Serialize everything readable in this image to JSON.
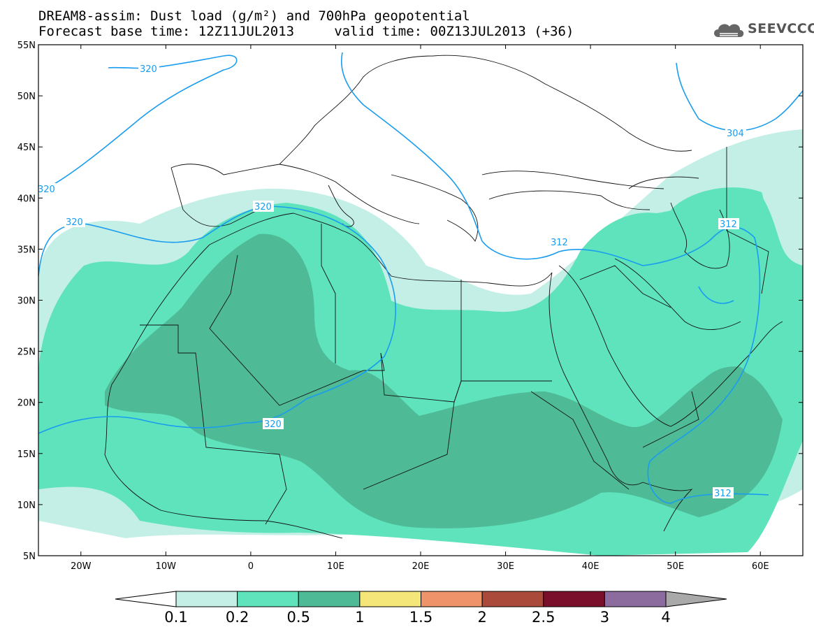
{
  "title_line1": "DREAM8-assim: Dust load (g/m²) and 700hPa geopotential",
  "title_line2": "Forecast base time: 12Z11JUL2013     valid time: 00Z13JUL2013 (+36)",
  "logo": {
    "icon": "cloud-icon",
    "text": "SEEVCCC"
  },
  "map": {
    "lon_range": [
      -25,
      65
    ],
    "lat_range": [
      5,
      55
    ],
    "lat_ticks": [
      "55N",
      "50N",
      "45N",
      "40N",
      "35N",
      "30N",
      "25N",
      "20N",
      "15N",
      "10N",
      "5N"
    ],
    "lon_ticks": [
      "20W",
      "10W",
      "0",
      "10E",
      "20E",
      "30E",
      "40E",
      "50E",
      "60E"
    ],
    "contour_labels": [
      "320",
      "320",
      "320",
      "320",
      "320",
      "312",
      "312",
      "312",
      "304"
    ]
  },
  "colorbar": {
    "labels": [
      "0.1",
      "0.2",
      "0.5",
      "1",
      "1.5",
      "2",
      "2.5",
      "3",
      "4"
    ],
    "colors": [
      "#ffffff",
      "#c4efe6",
      "#5ee3bd",
      "#4ebb96",
      "#f5e67a",
      "#ee936a",
      "#aa4a3b",
      "#7a0f2c",
      "#8c6b9e",
      "#a9a9a9"
    ]
  }
}
